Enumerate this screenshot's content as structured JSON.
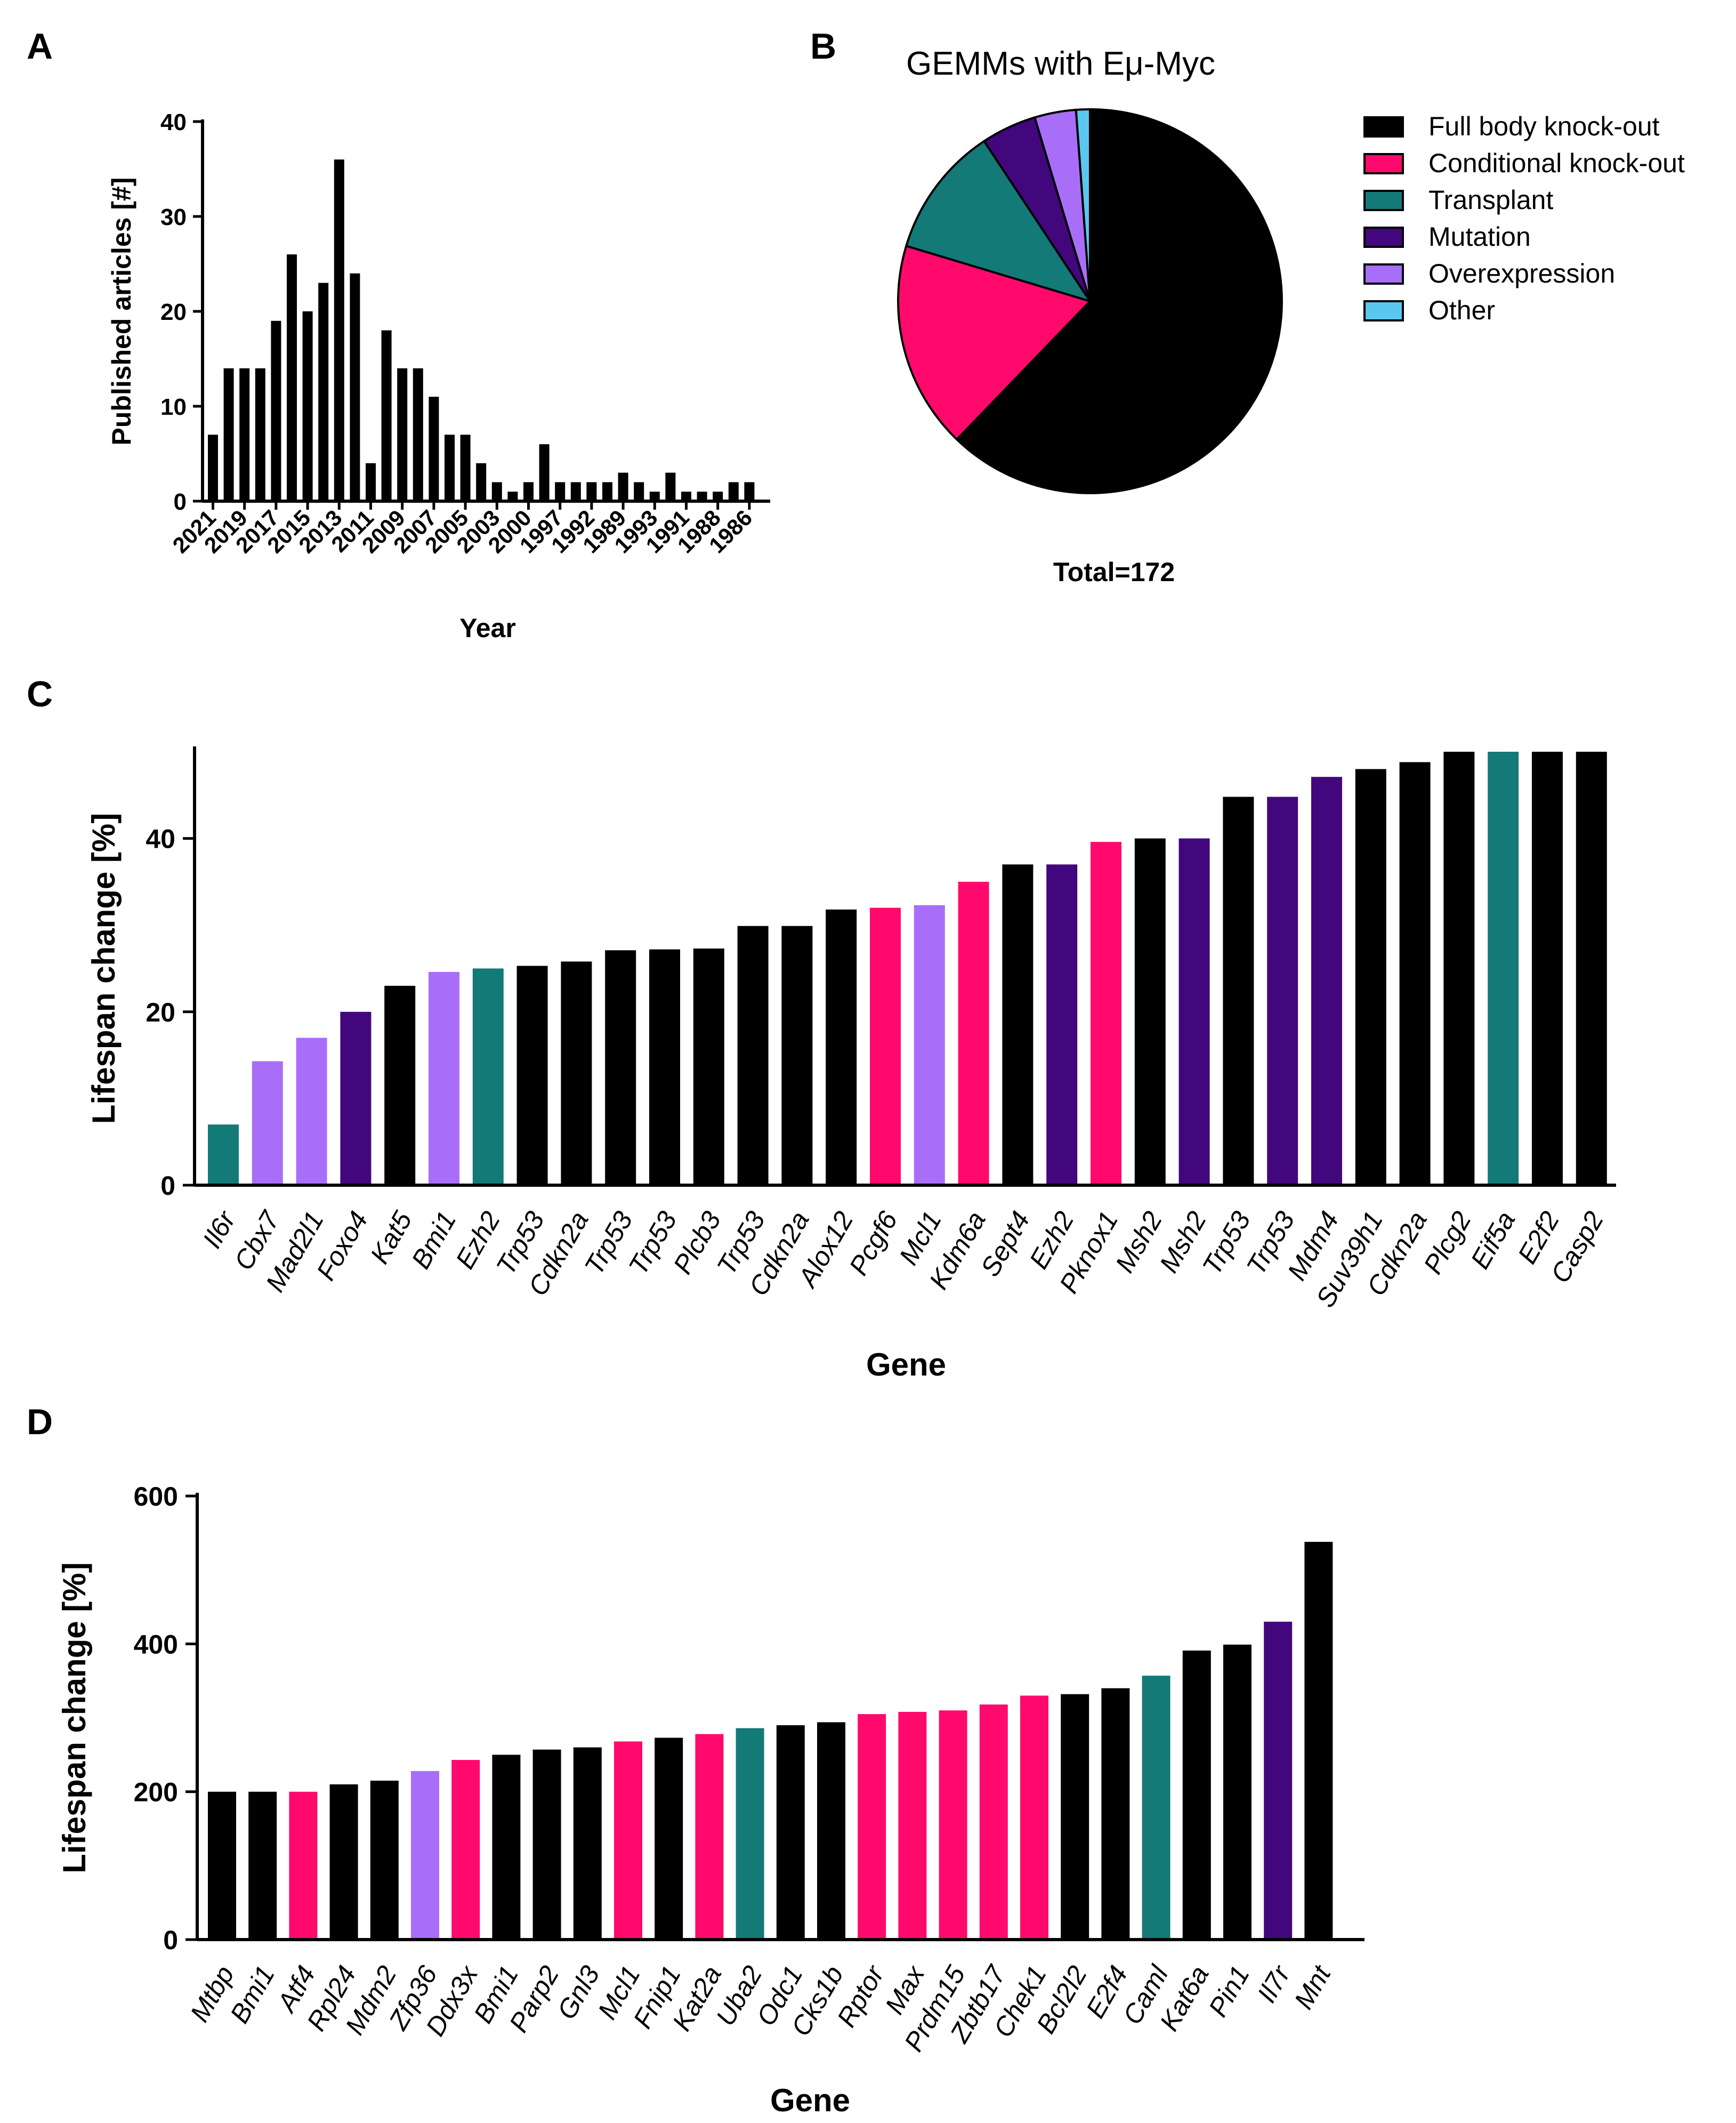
{
  "colors": {
    "Full body knock-out": "#000000",
    "Conditional knock-out": "#ff0a6c",
    "Transplant": "#137a78",
    "Mutation": "#43077d",
    "Overexpression": "#a86ef8",
    "Other": "#5bc7ee"
  },
  "chart_data": [
    {
      "panel": "A",
      "type": "bar",
      "title": "",
      "xlabel": "Year",
      "ylabel": "Published articles [#]",
      "ylim": [
        0,
        40
      ],
      "yticks": [
        0,
        10,
        20,
        30,
        40
      ],
      "xtick_labels": [
        "2021",
        "2019",
        "2017",
        "2015",
        "2013",
        "2011",
        "2009",
        "2007",
        "2005",
        "2003",
        "2000",
        "1997",
        "1992",
        "1989",
        "1993",
        "1991",
        "1988",
        "1986"
      ],
      "values": [
        7,
        14,
        14,
        14,
        19,
        26,
        20,
        23,
        36,
        24,
        4,
        18,
        14,
        14,
        11,
        7,
        7,
        4,
        2,
        1,
        2,
        6,
        2,
        2,
        2,
        2,
        3,
        2,
        1,
        3,
        1,
        1,
        1,
        2,
        2
      ]
    },
    {
      "panel": "B",
      "type": "pie",
      "title": "GEMMs with Eμ-Myc",
      "total_label": "Total=172",
      "categories": [
        "Full body knock-out",
        "Conditional knock-out",
        "Transplant",
        "Mutation",
        "Overexpression",
        "Other"
      ],
      "values": [
        107,
        30,
        19,
        8,
        6,
        2
      ],
      "legend_position": "right"
    },
    {
      "panel": "C",
      "type": "bar",
      "xlabel": "Gene",
      "ylabel": "Lifespan change [%]",
      "ylim": [
        0,
        50
      ],
      "yticks": [
        0,
        20,
        40
      ],
      "bars": [
        {
          "gene": "Il6r",
          "value": 7,
          "group": "Transplant"
        },
        {
          "gene": "Cbx7",
          "value": 14.3,
          "group": "Overexpression"
        },
        {
          "gene": "Mad2l1",
          "value": 17,
          "group": "Overexpression"
        },
        {
          "gene": "Foxo4",
          "value": 20,
          "group": "Mutation"
        },
        {
          "gene": "Kat5",
          "value": 23,
          "group": "Full body knock-out"
        },
        {
          "gene": "Bmi1",
          "value": 24.6,
          "group": "Overexpression"
        },
        {
          "gene": "Ezh2",
          "value": 25,
          "group": "Transplant"
        },
        {
          "gene": "Trp53",
          "value": 25.3,
          "group": "Full body knock-out"
        },
        {
          "gene": "Cdkn2a",
          "value": 25.8,
          "group": "Full body knock-out"
        },
        {
          "gene": "Trp53",
          "value": 27.1,
          "group": "Full body knock-out"
        },
        {
          "gene": "Trp53",
          "value": 27.2,
          "group": "Full body knock-out"
        },
        {
          "gene": "Plcb3",
          "value": 27.3,
          "group": "Full body knock-out"
        },
        {
          "gene": "Trp53",
          "value": 29.9,
          "group": "Full body knock-out"
        },
        {
          "gene": "Cdkn2a",
          "value": 29.9,
          "group": "Full body knock-out"
        },
        {
          "gene": "Alox12",
          "value": 31.8,
          "group": "Full body knock-out"
        },
        {
          "gene": "Pcgf6",
          "value": 32,
          "group": "Conditional knock-out"
        },
        {
          "gene": "Mcl1",
          "value": 32.3,
          "group": "Overexpression"
        },
        {
          "gene": "Kdm6a",
          "value": 35,
          "group": "Conditional knock-out"
        },
        {
          "gene": "Sept4",
          "value": 37,
          "group": "Full body knock-out"
        },
        {
          "gene": "Ezh2",
          "value": 37,
          "group": "Mutation"
        },
        {
          "gene": "Pknox1",
          "value": 39.6,
          "group": "Conditional knock-out"
        },
        {
          "gene": "Msh2",
          "value": 40,
          "group": "Full body knock-out"
        },
        {
          "gene": "Msh2",
          "value": 40,
          "group": "Mutation"
        },
        {
          "gene": "Trp53",
          "value": 44.8,
          "group": "Full body knock-out"
        },
        {
          "gene": "Trp53",
          "value": 44.8,
          "group": "Mutation"
        },
        {
          "gene": "Mdm4",
          "value": 47.1,
          "group": "Mutation"
        },
        {
          "gene": "Suv39h1",
          "value": 48,
          "group": "Full body knock-out"
        },
        {
          "gene": "Cdkn2a",
          "value": 48.8,
          "group": "Full body knock-out"
        },
        {
          "gene": "Plcg2",
          "value": 50,
          "group": "Full body knock-out"
        },
        {
          "gene": "Eif5a",
          "value": 50,
          "group": "Transplant"
        },
        {
          "gene": "E2f2",
          "value": 50,
          "group": "Full body knock-out"
        },
        {
          "gene": "Casp2",
          "value": 50,
          "group": "Full body knock-out"
        }
      ]
    },
    {
      "panel": "D",
      "type": "bar",
      "xlabel": "Gene",
      "ylabel": "Lifespan change [%]",
      "ylim": [
        0,
        600
      ],
      "yticks": [
        0,
        200,
        400,
        600
      ],
      "bars": [
        {
          "gene": "Mtbp",
          "value": 200,
          "group": "Full body knock-out"
        },
        {
          "gene": "Bmi1",
          "value": 200,
          "group": "Full body knock-out"
        },
        {
          "gene": "Atf4",
          "value": 200,
          "group": "Conditional knock-out"
        },
        {
          "gene": "Rpl24",
          "value": 210,
          "group": "Full body knock-out"
        },
        {
          "gene": "Mdm2",
          "value": 215,
          "group": "Full body knock-out"
        },
        {
          "gene": "Zfp36",
          "value": 228,
          "group": "Overexpression"
        },
        {
          "gene": "Ddx3x",
          "value": 243,
          "group": "Conditional knock-out"
        },
        {
          "gene": "Bmi1",
          "value": 250,
          "group": "Full body knock-out"
        },
        {
          "gene": "Parp2",
          "value": 257,
          "group": "Full body knock-out"
        },
        {
          "gene": "Gnl3",
          "value": 260,
          "group": "Full body knock-out"
        },
        {
          "gene": "Mcl1",
          "value": 268,
          "group": "Conditional knock-out"
        },
        {
          "gene": "Fnip1",
          "value": 273,
          "group": "Full body knock-out"
        },
        {
          "gene": "Kat2a",
          "value": 278,
          "group": "Conditional knock-out"
        },
        {
          "gene": "Uba2",
          "value": 286,
          "group": "Transplant"
        },
        {
          "gene": "Odc1",
          "value": 290,
          "group": "Full body knock-out"
        },
        {
          "gene": "Cks1b",
          "value": 294,
          "group": "Full body knock-out"
        },
        {
          "gene": "Rptor",
          "value": 305,
          "group": "Conditional knock-out"
        },
        {
          "gene": "Max",
          "value": 308,
          "group": "Conditional knock-out"
        },
        {
          "gene": "Prdm15",
          "value": 310,
          "group": "Conditional knock-out"
        },
        {
          "gene": "Zbtb17",
          "value": 318,
          "group": "Conditional knock-out"
        },
        {
          "gene": "Chek1",
          "value": 330,
          "group": "Conditional knock-out"
        },
        {
          "gene": "Bcl2l2",
          "value": 332,
          "group": "Full body knock-out"
        },
        {
          "gene": "E2f4",
          "value": 340,
          "group": "Full body knock-out"
        },
        {
          "gene": "Caml",
          "value": 357,
          "group": "Transplant"
        },
        {
          "gene": "Kat6a",
          "value": 391,
          "group": "Full body knock-out"
        },
        {
          "gene": "Pin1",
          "value": 399,
          "group": "Full body knock-out"
        },
        {
          "gene": "Il7r",
          "value": 430,
          "group": "Mutation"
        },
        {
          "gene": "Mnt",
          "value": 538,
          "group": "Full body knock-out"
        }
      ]
    }
  ]
}
